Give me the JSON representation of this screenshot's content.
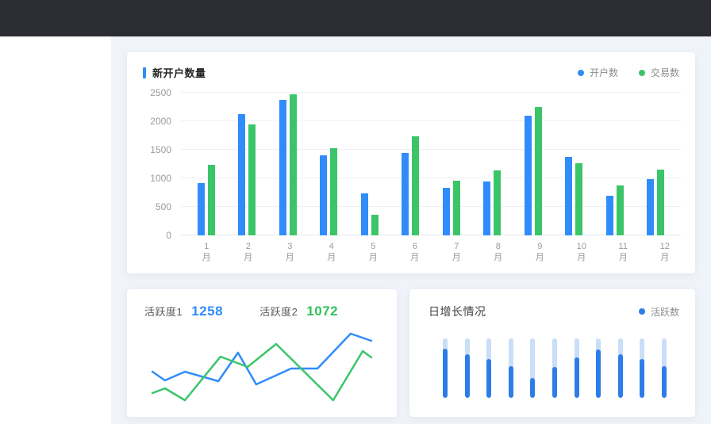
{
  "page": {
    "colors": {
      "header_bg": "#2B2D33",
      "main_bg": "#F0F3F9",
      "sidebar_bg": "#FFFFFF",
      "accent_blue": "#318CFB",
      "accent_green": "#3BC569"
    }
  },
  "cards": {
    "new_accounts": {
      "title": "新开户数量"
    },
    "activity": {
      "metric1_label": "活跃度1",
      "metric1_value": "1258",
      "metric1_color": "#318CFB",
      "metric2_label": "活跃度2",
      "metric2_value": "1072",
      "metric2_color": "#2FC25B"
    },
    "daily_growth": {
      "title": "日增长情况"
    }
  },
  "chart_data": [
    {
      "id": "new-accounts-bar",
      "type": "bar",
      "title": "新开户数量",
      "categories": [
        "1月",
        "2月",
        "3月",
        "4月",
        "5月",
        "6月",
        "7月",
        "8月",
        "9月",
        "10月",
        "11月",
        "12月"
      ],
      "series": [
        {
          "name": "开户数",
          "color": "#318CFB",
          "values": [
            910,
            2120,
            2370,
            1400,
            730,
            1450,
            840,
            940,
            2100,
            1370,
            690,
            980
          ]
        },
        {
          "name": "交易数",
          "color": "#3BC569",
          "values": [
            1230,
            1950,
            2470,
            1530,
            360,
            1740,
            960,
            1140,
            2250,
            1260,
            870,
            1150
          ]
        }
      ],
      "ylim": [
        0,
        2500
      ],
      "yticks": [
        0,
        500,
        1000,
        1500,
        2000,
        2500
      ],
      "grid": true,
      "legend_position": "top-right"
    },
    {
      "id": "activity-line",
      "type": "line",
      "note": "unlabeled sparkline; points are [x_percent, value_percent] of plot area",
      "series": [
        {
          "name": "活跃度1",
          "color": "#318CFB",
          "points": [
            [
              5.5,
              46.7
            ],
            [
              10.6,
              36.2
            ],
            [
              18.7,
              46.7
            ],
            [
              32.3,
              35.2
            ],
            [
              40.3,
              69.5
            ],
            [
              47.7,
              31.4
            ],
            [
              61.9,
              50.5
            ],
            [
              72.6,
              50.5
            ],
            [
              86.1,
              92.4
            ],
            [
              94.5,
              83.8
            ]
          ]
        },
        {
          "name": "活跃度2",
          "color": "#3BC569",
          "points": [
            [
              5.5,
              21.0
            ],
            [
              10.6,
              26.7
            ],
            [
              18.7,
              12.4
            ],
            [
              33.2,
              64.8
            ],
            [
              44.2,
              52.4
            ],
            [
              55.8,
              80.0
            ],
            [
              79.0,
              12.4
            ],
            [
              91.0,
              71.4
            ],
            [
              94.5,
              63.8
            ]
          ]
        }
      ],
      "grid": false
    },
    {
      "id": "daily-growth-capsules",
      "type": "bar",
      "title": "日增长情况",
      "note": "11 capsule progress bars; values are fill percent of track",
      "track_color": "#C9DEF8",
      "series": [
        {
          "name": "活跃数",
          "color": "#2D7DE9",
          "values_pct": [
            83,
            73,
            65,
            53,
            33,
            52,
            68,
            82,
            74,
            65,
            53
          ]
        }
      ],
      "grid": false,
      "legend_position": "top-right"
    }
  ]
}
